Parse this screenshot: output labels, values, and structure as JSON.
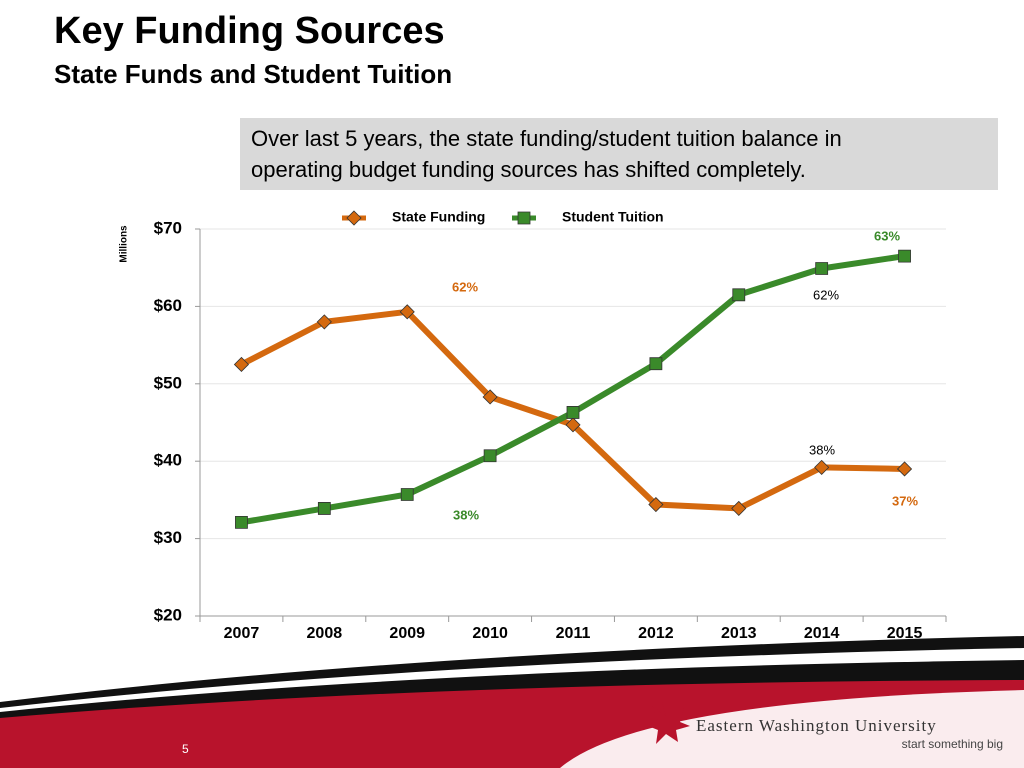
{
  "slide": {
    "title": "Key Funding Sources",
    "subtitle": "State Funds and Student Tuition",
    "callout": [
      "Over last 5 years, the state funding/student tuition balance in",
      "operating budget funding sources has shifted completely."
    ],
    "page_number": "5",
    "logo": {
      "name": "Eastern Washington University",
      "tagline": "start something big"
    }
  },
  "chart_data": {
    "type": "line",
    "y_label": "Millions",
    "categories": [
      "2007",
      "2008",
      "2009",
      "2010",
      "2011",
      "2012",
      "2013",
      "2014",
      "2015"
    ],
    "series": [
      {
        "name": "State Funding",
        "color": "#d4690f",
        "marker": "diamond",
        "values": [
          52.5,
          58.0,
          59.3,
          48.3,
          44.7,
          34.4,
          33.9,
          39.2,
          39.0
        ]
      },
      {
        "name": "Student Tuition",
        "color": "#3a8a2a",
        "marker": "square",
        "values": [
          32.1,
          33.9,
          35.7,
          40.7,
          46.3,
          52.6,
          61.5,
          64.9,
          66.5
        ]
      }
    ],
    "ylim": [
      20,
      70
    ],
    "yticks": [
      {
        "value": 20,
        "label": "$20"
      },
      {
        "value": 30,
        "label": "$30"
      },
      {
        "value": 40,
        "label": "$40"
      },
      {
        "value": 50,
        "label": "$50"
      },
      {
        "value": 60,
        "label": "$60"
      },
      {
        "value": 70,
        "label": "$70"
      }
    ],
    "grid": true,
    "legend": "top",
    "annotations": [
      {
        "text": "62%",
        "color": "#d4690f"
      },
      {
        "text": "38%",
        "color": "#3a8a2a"
      },
      {
        "text": "63%",
        "color": "#3a8a2a"
      },
      {
        "text": "62%",
        "color": "#000000"
      },
      {
        "text": "38%",
        "color": "#000000"
      },
      {
        "text": "37%",
        "color": "#d4690f"
      }
    ]
  }
}
